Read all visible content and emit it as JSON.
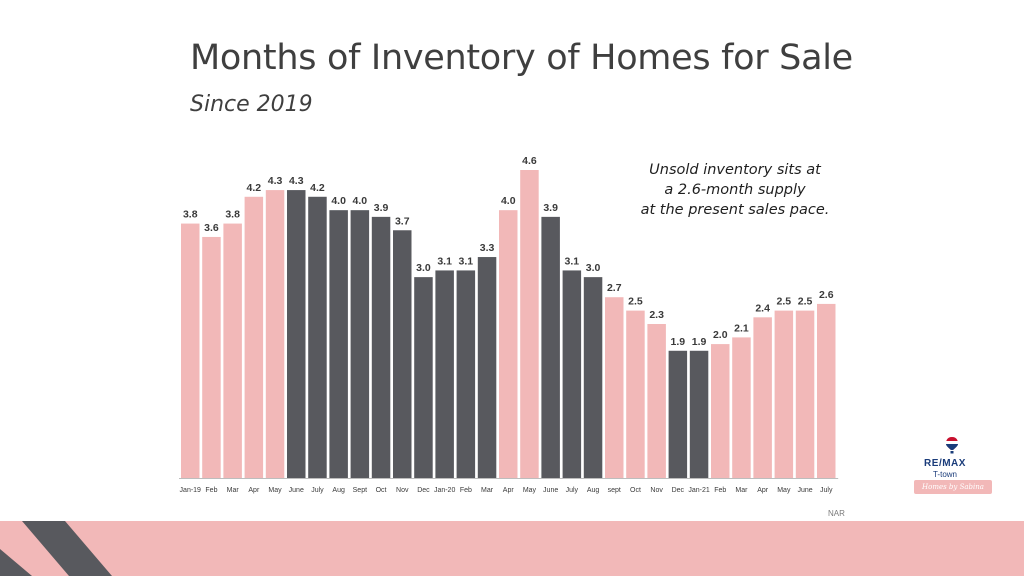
{
  "header": {
    "title": "Months of Inventory of Homes for Sale",
    "subtitle": "Since 2019"
  },
  "annotation": {
    "lines": [
      "Unsold inventory sits at",
      "a 2.6-month supply",
      "at the present sales pace."
    ]
  },
  "source": "NAR",
  "logo": {
    "brand": "RE/MAX",
    "office": "T-town",
    "tagline": "Homes by Sabina"
  },
  "colors": {
    "pink": "#f2b8b8",
    "dark": "#58595e",
    "axis": "#bdbdbd",
    "label": "#3a3a3a"
  },
  "chart_data": {
    "type": "bar",
    "title": "Months of Inventory of Homes for Sale",
    "subtitle": "Since 2019",
    "xlabel": "",
    "ylabel": "",
    "ylim": [
      0,
      4.6
    ],
    "grid": false,
    "categories": [
      "Jan-19",
      "Feb",
      "Mar",
      "Apr",
      "May",
      "June",
      "July",
      "Aug",
      "Sept",
      "Oct",
      "Nov",
      "Dec",
      "Jan-20",
      "Feb",
      "Mar",
      "Apr",
      "May",
      "June",
      "July",
      "Aug",
      "sept",
      "Oct",
      "Nov",
      "Dec",
      "Jan-21",
      "Feb",
      "Mar",
      "Apr",
      "May",
      "June",
      "July"
    ],
    "values": [
      3.8,
      3.6,
      3.8,
      4.2,
      4.3,
      4.3,
      4.2,
      4.0,
      4.0,
      3.9,
      3.7,
      3.0,
      3.1,
      3.1,
      3.3,
      4.0,
      4.6,
      3.9,
      3.1,
      3.0,
      2.7,
      2.5,
      2.3,
      1.9,
      1.9,
      2.0,
      2.1,
      2.4,
      2.5,
      2.5,
      2.6
    ],
    "value_labels": [
      "3.8",
      "3.6",
      "3.8",
      "4.2",
      "4.3",
      "4.3",
      "4.2",
      "4.0",
      "4.0",
      "3.9",
      "3.7",
      "3.0",
      "3.1",
      "3.1",
      "3.3",
      "4.0",
      "4.6",
      "3.9",
      "3.1",
      "3.0",
      "2.7",
      "2.5",
      "2.3",
      "1.9",
      "1.9",
      "2.0",
      "2.1",
      "2.4",
      "2.5",
      "2.5",
      "2.6"
    ],
    "bar_colors": [
      "#f2b8b8",
      "#f2b8b8",
      "#f2b8b8",
      "#f2b8b8",
      "#f2b8b8",
      "#58595e",
      "#58595e",
      "#58595e",
      "#58595e",
      "#58595e",
      "#58595e",
      "#58595e",
      "#58595e",
      "#58595e",
      "#58595e",
      "#f2b8b8",
      "#f2b8b8",
      "#58595e",
      "#58595e",
      "#58595e",
      "#f2b8b8",
      "#f2b8b8",
      "#f2b8b8",
      "#58595e",
      "#58595e",
      "#f2b8b8",
      "#f2b8b8",
      "#f2b8b8",
      "#f2b8b8",
      "#f2b8b8",
      "#f2b8b8"
    ]
  }
}
